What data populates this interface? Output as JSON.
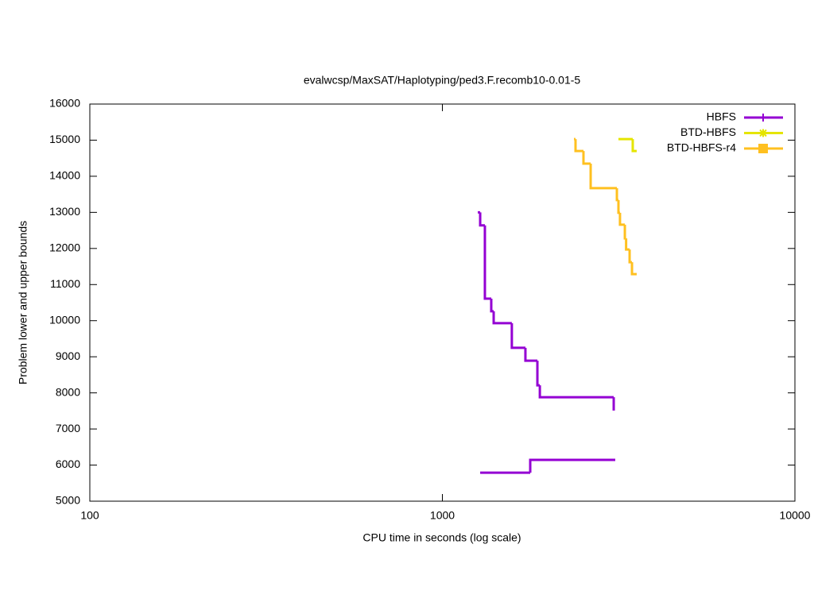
{
  "chart_data": {
    "type": "step",
    "title": "evalwcsp/MaxSAT/Haplotyping/ped3.F.recomb10-0.01-5",
    "x_label": "CPU time in seconds (log scale)",
    "y_label": "Problem lower and upper bounds",
    "xscale": "log",
    "xlim": [
      100,
      10000
    ],
    "xticks": [
      100,
      1000,
      10000
    ],
    "ylim": [
      5000,
      16000
    ],
    "yticks": [
      5000,
      6000,
      7000,
      8000,
      9000,
      10000,
      11000,
      12000,
      13000,
      14000,
      15000,
      16000
    ],
    "legend": "top-right",
    "series": [
      {
        "name": "HBFS",
        "color": "#9400d3",
        "marker": "plus",
        "x": [
          1260,
          1280,
          1320,
          1376,
          1398,
          1574,
          1720,
          1860,
          1890,
          3062
        ],
        "values": [
          13000,
          12640,
          10610,
          10260,
          9930,
          9250,
          8890,
          8210,
          7880,
          7510
        ],
        "lower": {
          "x": [
            1280,
            1775,
            3093
          ],
          "values": [
            5790,
            6144,
            6144
          ]
        }
      },
      {
        "name": "BTD-HBFS",
        "color": "#e5e500",
        "marker": "star",
        "x": [
          3158,
          3467,
          3558
        ],
        "values": [
          15030,
          14700,
          14700
        ]
      },
      {
        "name": "BTD-HBFS-r4",
        "color": "#ffc020",
        "marker": "square",
        "x": [
          2362,
          2386,
          2513,
          2634,
          3126,
          3158,
          3190,
          3293,
          3320,
          3397,
          3450,
          3558
        ],
        "values": [
          15030,
          14700,
          14350,
          13670,
          13340,
          12990,
          12660,
          12280,
          11970,
          11620,
          11290,
          11290
        ]
      }
    ]
  }
}
